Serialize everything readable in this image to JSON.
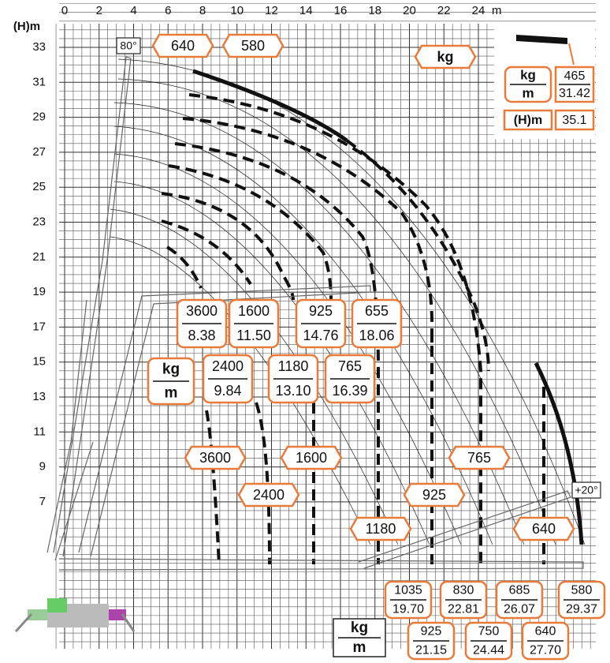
{
  "axes": {
    "x_unit": "m",
    "y_unit": "(H)m",
    "x_ticks": [
      0,
      2,
      4,
      6,
      8,
      10,
      12,
      14,
      16,
      18,
      20,
      22,
      24
    ],
    "y_ticks": [
      7,
      9,
      11,
      13,
      15,
      17,
      19,
      21,
      23,
      25,
      27,
      29,
      31,
      33
    ]
  },
  "angles": {
    "max": "80°",
    "min": "+20°"
  },
  "top_labels": [
    "640",
    "580",
    "kg"
  ],
  "legend": {
    "kg": "kg",
    "m": "m",
    "load": "465",
    "reach": "31.42",
    "height_label": "(H)m",
    "height": "35.1"
  },
  "mid_unit": {
    "kg": "kg",
    "m": "m"
  },
  "upper_pairs": [
    {
      "kg": "3600",
      "m": "8.38"
    },
    {
      "kg": "1600",
      "m": "11.50"
    },
    {
      "kg": "925",
      "m": "14.76"
    },
    {
      "kg": "655",
      "m": "18.06"
    },
    {
      "kg": "2400",
      "m": "9.84"
    },
    {
      "kg": "1180",
      "m": "13.10"
    },
    {
      "kg": "765",
      "m": "16.39"
    }
  ],
  "hex_labels": [
    "3600",
    "1600",
    "2400",
    "765",
    "925",
    "1180",
    "640"
  ],
  "bottom_pairs": [
    {
      "kg": "1035",
      "m": "19.70"
    },
    {
      "kg": "830",
      "m": "22.81"
    },
    {
      "kg": "685",
      "m": "26.07"
    },
    {
      "kg": "580",
      "m": "29.37"
    },
    {
      "kg": "925",
      "m": "21.15"
    },
    {
      "kg": "750",
      "m": "24.44"
    },
    {
      "kg": "640",
      "m": "27.70"
    }
  ],
  "bottom_unit": {
    "kg": "kg",
    "m": "m"
  }
}
